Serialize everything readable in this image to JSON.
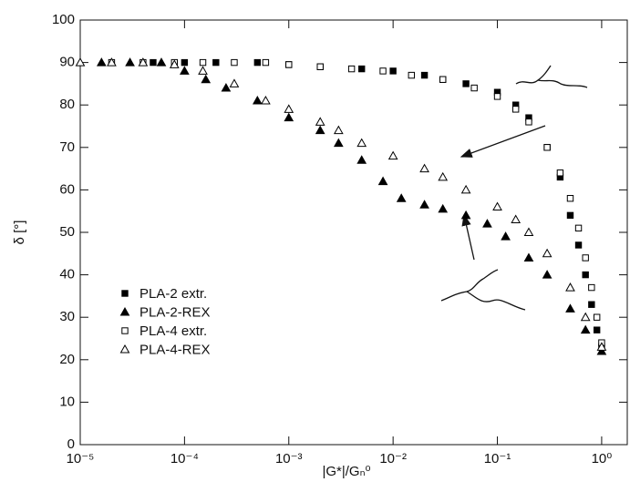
{
  "chart_data": {
    "type": "scatter",
    "xlabel": "|G*|/Gₙ⁰",
    "ylabel": "δ [°]",
    "xscale": "log",
    "xlim": [
      1e-05,
      1.76
    ],
    "ylim": [
      0,
      100
    ],
    "xticks": [
      {
        "value": 1e-05,
        "label": "10⁻⁵"
      },
      {
        "value": 0.0001,
        "label": "10⁻⁴"
      },
      {
        "value": 0.001,
        "label": "10⁻³"
      },
      {
        "value": 0.01,
        "label": "10⁻²"
      },
      {
        "value": 0.1,
        "label": "10⁻¹"
      },
      {
        "value": 1,
        "label": "10⁰"
      }
    ],
    "yticks": [
      0,
      10,
      20,
      30,
      40,
      50,
      60,
      70,
      80,
      90,
      100
    ],
    "grid": false,
    "legend": "lower left",
    "series": [
      {
        "name": "PLA-2 extr.",
        "color": "#000000",
        "marker": "square",
        "filled": true,
        "x": [
          5e-05,
          0.0001,
          0.0002,
          0.0005,
          0.001,
          0.002,
          0.005,
          0.01,
          0.02,
          0.03,
          0.05,
          0.1,
          0.15,
          0.2,
          0.3,
          0.4,
          0.5,
          0.6,
          0.7,
          0.8,
          0.9,
          1
        ],
        "values": [
          90,
          90,
          90,
          90,
          89.5,
          89,
          88.5,
          88,
          87,
          86,
          85,
          83,
          80,
          77,
          70,
          63,
          54,
          47,
          40,
          33,
          27,
          23
        ]
      },
      {
        "name": "PLA-2-REX",
        "color": "#000000",
        "marker": "triangle",
        "filled": true,
        "x": [
          1.6e-05,
          3e-05,
          6e-05,
          0.0001,
          0.00016,
          0.00025,
          0.0005,
          0.001,
          0.002,
          0.003,
          0.005,
          0.008,
          0.012,
          0.02,
          0.03,
          0.05,
          0.08,
          0.12,
          0.2,
          0.3,
          0.5,
          0.7,
          1
        ],
        "values": [
          90,
          90,
          90,
          88,
          86,
          84,
          81,
          77,
          74,
          71,
          67,
          62,
          58,
          56.5,
          55.5,
          54,
          52,
          49,
          44,
          40,
          32,
          27,
          22
        ]
      },
      {
        "name": "PLA-4 extr.",
        "color": "#000000",
        "marker": "square",
        "filled": false,
        "x": [
          2e-05,
          4e-05,
          8e-05,
          0.00015,
          0.0003,
          0.0006,
          0.001,
          0.002,
          0.004,
          0.008,
          0.015,
          0.03,
          0.06,
          0.1,
          0.15,
          0.2,
          0.3,
          0.4,
          0.5,
          0.6,
          0.7,
          0.8,
          0.9,
          1
        ],
        "values": [
          90,
          90,
          90,
          90,
          90,
          90,
          89.5,
          89,
          88.5,
          88,
          87,
          86,
          84,
          82,
          79,
          76,
          70,
          64,
          58,
          51,
          44,
          37,
          30,
          24
        ]
      },
      {
        "name": "PLA-4-REX",
        "color": "#000000",
        "marker": "triangle",
        "filled": false,
        "x": [
          1e-05,
          2e-05,
          4e-05,
          8e-05,
          0.00015,
          0.0003,
          0.0006,
          0.001,
          0.002,
          0.003,
          0.005,
          0.01,
          0.02,
          0.03,
          0.05,
          0.1,
          0.15,
          0.2,
          0.3,
          0.5,
          0.7,
          1
        ],
        "values": [
          90,
          90,
          90,
          89.5,
          88,
          85,
          81,
          79,
          76,
          74,
          71,
          68,
          65,
          63,
          60,
          56,
          53,
          50,
          45,
          37,
          30,
          23
        ]
      }
    ]
  }
}
